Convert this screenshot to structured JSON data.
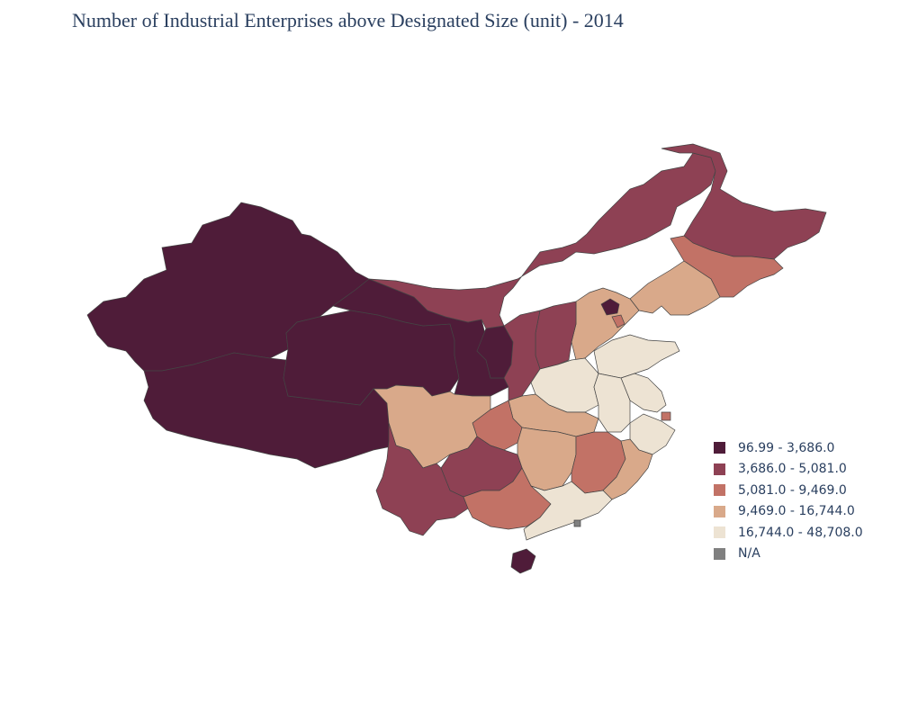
{
  "title": "Number of Industrial Enterprises above Designated Size (unit) - 2014",
  "legend": {
    "items": [
      {
        "label": "96.99 - 3,686.0",
        "color": "#4f1c39"
      },
      {
        "label": "3,686.0 - 5,081.0",
        "color": "#8e4154"
      },
      {
        "label": "5,081.0 - 9,469.0",
        "color": "#c27266"
      },
      {
        "label": "9,469.0 - 16,744.0",
        "color": "#d9a98a"
      },
      {
        "label": "16,744.0 - 48,708.0",
        "color": "#ede3d3"
      },
      {
        "label": "N/A",
        "color": "#808080"
      }
    ]
  },
  "map": {
    "type": "choropleth",
    "regions": [
      {
        "name": "Xinjiang",
        "class": 0
      },
      {
        "name": "Tibet",
        "class": 0
      },
      {
        "name": "Qinghai",
        "class": 0
      },
      {
        "name": "Gansu",
        "class": 0
      },
      {
        "name": "Ningxia",
        "class": 0
      },
      {
        "name": "Beijing",
        "class": 0
      },
      {
        "name": "Hainan",
        "class": 0
      },
      {
        "name": "Inner Mongolia",
        "class": 1
      },
      {
        "name": "Heilongjiang",
        "class": 1
      },
      {
        "name": "Shanxi",
        "class": 1
      },
      {
        "name": "Shaanxi",
        "class": 1
      },
      {
        "name": "Yunnan",
        "class": 1
      },
      {
        "name": "Guizhou",
        "class": 1
      },
      {
        "name": "Jilin",
        "class": 2
      },
      {
        "name": "Tianjin",
        "class": 2
      },
      {
        "name": "Chongqing",
        "class": 2
      },
      {
        "name": "Guangxi",
        "class": 2
      },
      {
        "name": "Jiangxi",
        "class": 2
      },
      {
        "name": "Shanghai",
        "class": 2
      },
      {
        "name": "Liaoning",
        "class": 3
      },
      {
        "name": "Hebei",
        "class": 3
      },
      {
        "name": "Sichuan",
        "class": 3
      },
      {
        "name": "Hubei",
        "class": 3
      },
      {
        "name": "Hunan",
        "class": 3
      },
      {
        "name": "Fujian",
        "class": 3
      },
      {
        "name": "Shandong",
        "class": 4
      },
      {
        "name": "Henan",
        "class": 4
      },
      {
        "name": "Anhui",
        "class": 4
      },
      {
        "name": "Jiangsu",
        "class": 4
      },
      {
        "name": "Zhejiang",
        "class": 4
      },
      {
        "name": "Guangdong",
        "class": 4
      },
      {
        "name": "Hong Kong",
        "class": 5
      }
    ]
  }
}
